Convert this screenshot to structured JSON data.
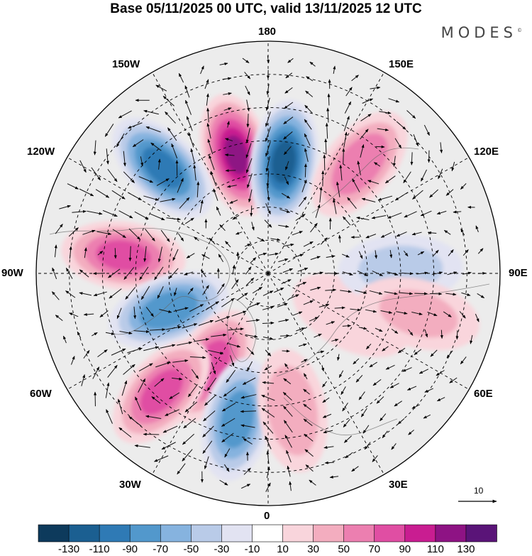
{
  "title": "Base 05/11/2025 00 UTC, valid 13/11/2025 12 UTC",
  "logo": "MODES",
  "logo_mark": "©",
  "longitude_labels": {
    "lon_180": "180",
    "lon_150w": "150W",
    "lon_150e": "150E",
    "lon_120w": "120W",
    "lon_120e": "120E",
    "lon_90w": "90W",
    "lon_90e": "90E",
    "lon_60w": "60W",
    "lon_60e": "60E",
    "lon_30w": "30W",
    "lon_30e": "30E",
    "lon_0": "0"
  },
  "reference_vector": {
    "label": "10",
    "value": 10
  },
  "colorbar": {
    "colors": [
      "#0d3a5c",
      "#1b5f91",
      "#2f7ab5",
      "#5298cc",
      "#86b3df",
      "#b9cbe8",
      "#e2e3f2",
      "#ffffff",
      "#f9d5dc",
      "#f3adbf",
      "#ec7fb0",
      "#e04ea3",
      "#c91d91",
      "#8e1384",
      "#5a1478"
    ],
    "labels": [
      "-130",
      "-110",
      "-90",
      "-70",
      "-50",
      "-30",
      "-10",
      "10",
      "30",
      "50",
      "70",
      "90",
      "110",
      "130"
    ]
  },
  "anomalies": [
    {
      "name": "anomaly-pos-150w",
      "lon": -165,
      "lat": 53,
      "value": 120
    },
    {
      "name": "anomaly-neg-170e",
      "lon": 172,
      "lat": 56,
      "value": -125
    },
    {
      "name": "anomaly-pos-140e",
      "lon": 140,
      "lat": 47,
      "value": 75
    },
    {
      "name": "anomaly-neg-130w",
      "lon": -135,
      "lat": 45,
      "value": -110
    },
    {
      "name": "anomaly-pos-95w",
      "lon": -97,
      "lat": 46,
      "value": 85
    },
    {
      "name": "anomaly-neg-70w",
      "lon": -70,
      "lat": 58,
      "value": -95
    },
    {
      "name": "anomaly-pos-35w",
      "lon": -32,
      "lat": 57,
      "value": 90
    },
    {
      "name": "anomaly-pos-40w-south",
      "lon": -42,
      "lat": 42,
      "value": 85
    },
    {
      "name": "anomaly-neg-15w",
      "lon": -12,
      "lat": 45,
      "value": -90
    },
    {
      "name": "anomaly-pos-10e",
      "lon": 10,
      "lat": 48,
      "value": 55
    },
    {
      "name": "anomaly-pos-60e",
      "lon": 63,
      "lat": 62,
      "value": 30
    },
    {
      "name": "anomaly-neg-90e",
      "lon": 92,
      "lat": 50,
      "value": -45
    },
    {
      "name": "anomaly-pos-75e",
      "lon": 75,
      "lat": 43,
      "value": 40
    }
  ]
}
